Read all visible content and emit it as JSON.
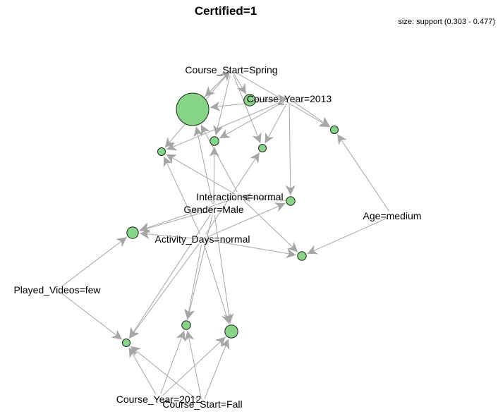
{
  "title": "Certified=1",
  "legend": "size: support (0.303 - 0.477)",
  "colors": {
    "node_fill": "#86d586",
    "node_stroke": "#222222",
    "edge": "#a6a6a6",
    "arrow": "#a6a6a6"
  },
  "items": [
    {
      "id": "course_start_spring",
      "label": "Course_Start=Spring"
    },
    {
      "id": "course_year_2013",
      "label": "Course_Year=2013"
    },
    {
      "id": "interactions_normal",
      "label": "Interactions=normal"
    },
    {
      "id": "gender_male",
      "label": "Gender=Male"
    },
    {
      "id": "age_medium",
      "label": "Age=medium"
    },
    {
      "id": "activity_days_normal",
      "label": "Activity_Days=normal"
    },
    {
      "id": "played_videos_few",
      "label": "Played_Videos=few"
    },
    {
      "id": "course_year_2012",
      "label": "Course_Year=2012"
    },
    {
      "id": "course_start_fall",
      "label": "Course_Start=Fall"
    }
  ],
  "rules": [
    {
      "id": "r1",
      "support": 0.477
    },
    {
      "id": "r2",
      "support": 0.33
    },
    {
      "id": "r3",
      "support": 0.31
    },
    {
      "id": "r4",
      "support": 0.303
    },
    {
      "id": "r5",
      "support": 0.303
    },
    {
      "id": "r6",
      "support": 0.303
    },
    {
      "id": "r7",
      "support": 0.31
    },
    {
      "id": "r8",
      "support": 0.33
    },
    {
      "id": "r9",
      "support": 0.31
    },
    {
      "id": "r10",
      "support": 0.303
    },
    {
      "id": "r11",
      "support": 0.31
    },
    {
      "id": "r12",
      "support": 0.34
    }
  ],
  "edges": [
    [
      "course_start_spring",
      "r1"
    ],
    [
      "course_start_spring",
      "r2"
    ],
    [
      "course_start_spring",
      "r3"
    ],
    [
      "course_start_spring",
      "r4"
    ],
    [
      "course_start_spring",
      "r5"
    ],
    [
      "course_start_spring",
      "r6"
    ],
    [
      "course_year_2013",
      "r1"
    ],
    [
      "course_year_2013",
      "r3"
    ],
    [
      "course_year_2013",
      "r4"
    ],
    [
      "course_year_2013",
      "r5"
    ],
    [
      "course_year_2013",
      "r6"
    ],
    [
      "course_year_2013",
      "r7"
    ],
    [
      "interactions_normal",
      "r1"
    ],
    [
      "interactions_normal",
      "r4"
    ],
    [
      "interactions_normal",
      "r8"
    ],
    [
      "interactions_normal",
      "r9"
    ],
    [
      "gender_male",
      "r1"
    ],
    [
      "gender_male",
      "r3"
    ],
    [
      "gender_male",
      "r8"
    ],
    [
      "gender_male",
      "r10"
    ],
    [
      "gender_male",
      "r11"
    ],
    [
      "gender_male",
      "r12"
    ],
    [
      "activity_days_normal",
      "r4"
    ],
    [
      "activity_days_normal",
      "r5"
    ],
    [
      "activity_days_normal",
      "r7"
    ],
    [
      "activity_days_normal",
      "r8"
    ],
    [
      "activity_days_normal",
      "r9"
    ],
    [
      "activity_days_normal",
      "r10"
    ],
    [
      "activity_days_normal",
      "r11"
    ],
    [
      "activity_days_normal",
      "r12"
    ],
    [
      "age_medium",
      "r6"
    ],
    [
      "age_medium",
      "r9"
    ],
    [
      "played_videos_few",
      "r8"
    ],
    [
      "played_videos_few",
      "r10"
    ],
    [
      "course_year_2012",
      "r10"
    ],
    [
      "course_year_2012",
      "r11"
    ],
    [
      "course_year_2012",
      "r12"
    ],
    [
      "course_start_fall",
      "r10"
    ],
    [
      "course_start_fall",
      "r11"
    ],
    [
      "course_start_fall",
      "r12"
    ],
    [
      "r1",
      "course_start_spring"
    ],
    [
      "r7",
      "interactions_normal"
    ],
    [
      "r2",
      "course_year_2013"
    ]
  ]
}
